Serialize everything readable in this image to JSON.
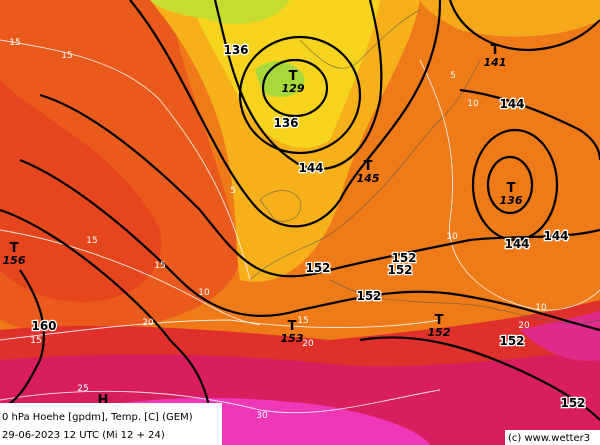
{
  "map": {
    "caption": "0 hPa Hoehe [gpdm], Temp. [C] (GEM)",
    "valid_time": "29-06-2023 12 UTC (Mi 12 + 24)",
    "credit": "(c) www.wetter3",
    "height_labels": [
      "136",
      "136",
      "144",
      "152",
      "152",
      "152",
      "152",
      "152",
      "152",
      "160",
      "144",
      "144",
      "144"
    ],
    "centers": [
      {
        "symbol": "T",
        "value": "129"
      },
      {
        "symbol": "T",
        "value": "145"
      },
      {
        "symbol": "T",
        "value": "156"
      },
      {
        "symbol": "T",
        "value": "153"
      },
      {
        "symbol": "T",
        "value": "152"
      },
      {
        "symbol": "T",
        "value": "141"
      },
      {
        "symbol": "T",
        "value": "136"
      },
      {
        "symbol": "H"
      }
    ],
    "isotherm_labels": [
      "15",
      "15",
      "15",
      "15",
      "10",
      "20",
      "15",
      "25",
      "20",
      "30",
      "5",
      "5",
      "10",
      "10",
      "10",
      "15",
      "20",
      "20"
    ]
  }
}
